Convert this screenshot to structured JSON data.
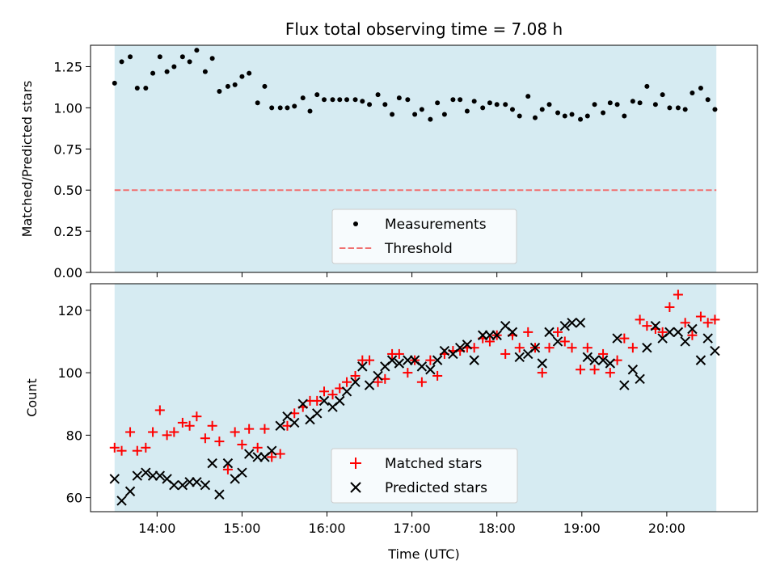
{
  "chart_data": [
    {
      "type": "scatter",
      "title": "Flux total observing time = 7.08 h",
      "xlabel": "",
      "ylabel": "Matched/Predicted stars",
      "ylim": [
        0,
        1.38
      ],
      "yticks": [
        0.0,
        0.25,
        0.5,
        0.75,
        1.0,
        1.25
      ],
      "ytick_labels": [
        "0.00",
        "0.25",
        "0.50",
        "0.75",
        "1.00",
        "1.25"
      ],
      "xlim": [
        "13:13",
        "21:04"
      ],
      "xticks": [
        "14:00",
        "15:00",
        "16:00",
        "17:00",
        "18:00",
        "19:00",
        "20:00"
      ],
      "shaded_span": [
        "13:30",
        "20:35"
      ],
      "legend": {
        "position": "lower-center",
        "entries": [
          {
            "label": "Measurements",
            "marker": "dot",
            "color": "#000000"
          },
          {
            "label": "Threshold",
            "marker": "dashed-line",
            "color": "#f07070"
          }
        ]
      },
      "series": [
        {
          "name": "Measurements",
          "color": "#000000",
          "x": [
            "13:30",
            "13:35",
            "13:41",
            "13:46",
            "13:52",
            "13:57",
            "14:02",
            "14:07",
            "14:12",
            "14:18",
            "14:23",
            "14:28",
            "14:34",
            "14:39",
            "14:44",
            "14:50",
            "14:55",
            "15:00",
            "15:05",
            "15:11",
            "15:16",
            "15:21",
            "15:27",
            "15:32",
            "15:37",
            "15:43",
            "15:48",
            "15:53",
            "15:58",
            "16:04",
            "16:09",
            "16:14",
            "16:20",
            "16:25",
            "16:30",
            "16:36",
            "16:41",
            "16:46",
            "16:51",
            "16:57",
            "17:02",
            "17:07",
            "17:13",
            "17:18",
            "17:23",
            "17:29",
            "17:34",
            "17:39",
            "17:44",
            "17:50",
            "17:55",
            "18:00",
            "18:06",
            "18:11",
            "18:16",
            "18:22",
            "18:27",
            "18:32",
            "18:37",
            "18:43",
            "18:48",
            "18:53",
            "18:59",
            "19:04",
            "19:09",
            "19:15",
            "19:20",
            "19:25",
            "19:30",
            "19:36",
            "19:41",
            "19:46",
            "19:52",
            "19:57",
            "20:02",
            "20:08",
            "20:13",
            "20:18",
            "20:24",
            "20:29",
            "20:34"
          ],
          "y": [
            1.15,
            1.28,
            1.31,
            1.12,
            1.12,
            1.21,
            1.31,
            1.22,
            1.25,
            1.31,
            1.28,
            1.35,
            1.22,
            1.3,
            1.1,
            1.13,
            1.14,
            1.19,
            1.21,
            1.03,
            1.13,
            1.0,
            1.0,
            1.0,
            1.01,
            1.06,
            0.98,
            1.08,
            1.05,
            1.05,
            1.05,
            1.05,
            1.05,
            1.04,
            1.02,
            1.08,
            1.02,
            0.96,
            1.06,
            1.05,
            0.96,
            0.99,
            0.93,
            1.03,
            0.96,
            1.05,
            1.05,
            0.98,
            1.04,
            1.0,
            1.03,
            1.02,
            1.02,
            0.99,
            0.95,
            1.07,
            0.94,
            0.99,
            1.02,
            0.97,
            0.95,
            0.96,
            0.93,
            0.95,
            1.02,
            0.97,
            1.03,
            1.02,
            0.95,
            1.04,
            1.03,
            1.13,
            1.02,
            1.08,
            1.0,
            1.0,
            0.99,
            1.09,
            1.12,
            1.05,
            0.99
          ]
        },
        {
          "name": "Threshold",
          "color": "#f07070",
          "style": "dashed",
          "x": [
            "13:30",
            "20:35"
          ],
          "y": [
            0.5,
            0.5
          ]
        }
      ]
    },
    {
      "type": "scatter",
      "title": "",
      "xlabel": "Time (UTC)",
      "ylabel": "Count",
      "ylim": [
        55.5,
        128.5
      ],
      "yticks": [
        60,
        80,
        100,
        120
      ],
      "ytick_labels": [
        "60",
        "80",
        "100",
        "120"
      ],
      "xlim": [
        "13:13",
        "21:04"
      ],
      "xticks": [
        "14:00",
        "15:00",
        "16:00",
        "17:00",
        "18:00",
        "19:00",
        "20:00"
      ],
      "xtick_labels": [
        "14:00",
        "15:00",
        "16:00",
        "17:00",
        "18:00",
        "19:00",
        "20:00"
      ],
      "shaded_span": [
        "13:30",
        "20:35"
      ],
      "legend": {
        "position": "lower-center",
        "entries": [
          {
            "label": "Matched stars",
            "marker": "plus",
            "color": "#ff0000"
          },
          {
            "label": "Predicted stars",
            "marker": "x",
            "color": "#000000"
          }
        ]
      },
      "series": [
        {
          "name": "Matched stars",
          "color": "#ff0000",
          "marker": "plus",
          "x": [
            "13:30",
            "13:35",
            "13:41",
            "13:46",
            "13:52",
            "13:57",
            "14:02",
            "14:07",
            "14:12",
            "14:18",
            "14:23",
            "14:28",
            "14:34",
            "14:39",
            "14:44",
            "14:50",
            "14:55",
            "15:00",
            "15:05",
            "15:11",
            "15:16",
            "15:21",
            "15:27",
            "15:32",
            "15:37",
            "15:43",
            "15:48",
            "15:53",
            "15:58",
            "16:04",
            "16:09",
            "16:14",
            "16:20",
            "16:25",
            "16:30",
            "16:36",
            "16:41",
            "16:46",
            "16:51",
            "16:57",
            "17:02",
            "17:07",
            "17:13",
            "17:18",
            "17:23",
            "17:29",
            "17:34",
            "17:39",
            "17:44",
            "17:50",
            "17:55",
            "18:00",
            "18:06",
            "18:11",
            "18:16",
            "18:22",
            "18:27",
            "18:32",
            "18:37",
            "18:43",
            "18:48",
            "18:53",
            "18:59",
            "19:04",
            "19:09",
            "19:15",
            "19:20",
            "19:25",
            "19:30",
            "19:36",
            "19:41",
            "19:46",
            "19:52",
            "19:57",
            "20:02",
            "20:08",
            "20:13",
            "20:18",
            "20:24",
            "20:29",
            "20:34"
          ],
          "y": [
            76,
            75,
            81,
            75,
            76,
            81,
            88,
            80,
            81,
            84,
            83,
            86,
            79,
            83,
            78,
            69,
            81,
            77,
            82,
            76,
            82,
            73,
            74,
            83,
            87,
            89,
            91,
            91,
            94,
            93,
            95,
            97,
            99,
            104,
            104,
            97,
            98,
            106,
            106,
            100,
            104,
            97,
            104,
            99,
            106,
            107,
            107,
            108,
            108,
            111,
            110,
            112,
            106,
            112,
            108,
            113,
            108,
            100,
            108,
            113,
            110,
            108,
            101,
            108,
            101,
            106,
            100,
            104,
            111,
            108,
            117,
            115,
            114,
            113,
            121,
            125,
            116,
            112,
            118,
            116,
            117
          ]
        },
        {
          "name": "Predicted stars",
          "color": "#000000",
          "marker": "x",
          "x": [
            "13:30",
            "13:35",
            "13:41",
            "13:46",
            "13:52",
            "13:57",
            "14:02",
            "14:07",
            "14:12",
            "14:18",
            "14:23",
            "14:28",
            "14:34",
            "14:39",
            "14:44",
            "14:50",
            "14:55",
            "15:00",
            "15:05",
            "15:11",
            "15:16",
            "15:21",
            "15:27",
            "15:32",
            "15:37",
            "15:43",
            "15:48",
            "15:53",
            "15:58",
            "16:04",
            "16:09",
            "16:14",
            "16:20",
            "16:25",
            "16:30",
            "16:36",
            "16:41",
            "16:46",
            "16:51",
            "16:57",
            "17:02",
            "17:07",
            "17:13",
            "17:18",
            "17:23",
            "17:29",
            "17:34",
            "17:39",
            "17:44",
            "17:50",
            "17:55",
            "18:00",
            "18:06",
            "18:11",
            "18:16",
            "18:22",
            "18:27",
            "18:32",
            "18:37",
            "18:43",
            "18:48",
            "18:53",
            "18:59",
            "19:04",
            "19:09",
            "19:15",
            "19:20",
            "19:25",
            "19:30",
            "19:36",
            "19:41",
            "19:46",
            "19:52",
            "19:57",
            "20:02",
            "20:08",
            "20:13",
            "20:18",
            "20:24",
            "20:29",
            "20:34"
          ],
          "y": [
            66,
            59,
            62,
            67,
            68,
            67,
            67,
            66,
            64,
            64,
            65,
            65,
            64,
            71,
            61,
            71,
            66,
            68,
            74,
            73,
            73,
            75,
            83,
            86,
            84,
            90,
            85,
            87,
            91,
            89,
            91,
            94,
            97,
            102,
            96,
            99,
            102,
            104,
            103,
            104,
            104,
            102,
            101,
            104,
            107,
            106,
            108,
            109,
            104,
            112,
            112,
            112,
            115,
            113,
            105,
            106,
            108,
            103,
            113,
            110,
            115,
            116,
            116,
            105,
            104,
            104,
            103,
            111,
            96,
            101,
            98,
            108,
            115,
            111,
            113,
            113,
            110,
            114,
            104,
            111,
            107
          ]
        }
      ]
    }
  ]
}
